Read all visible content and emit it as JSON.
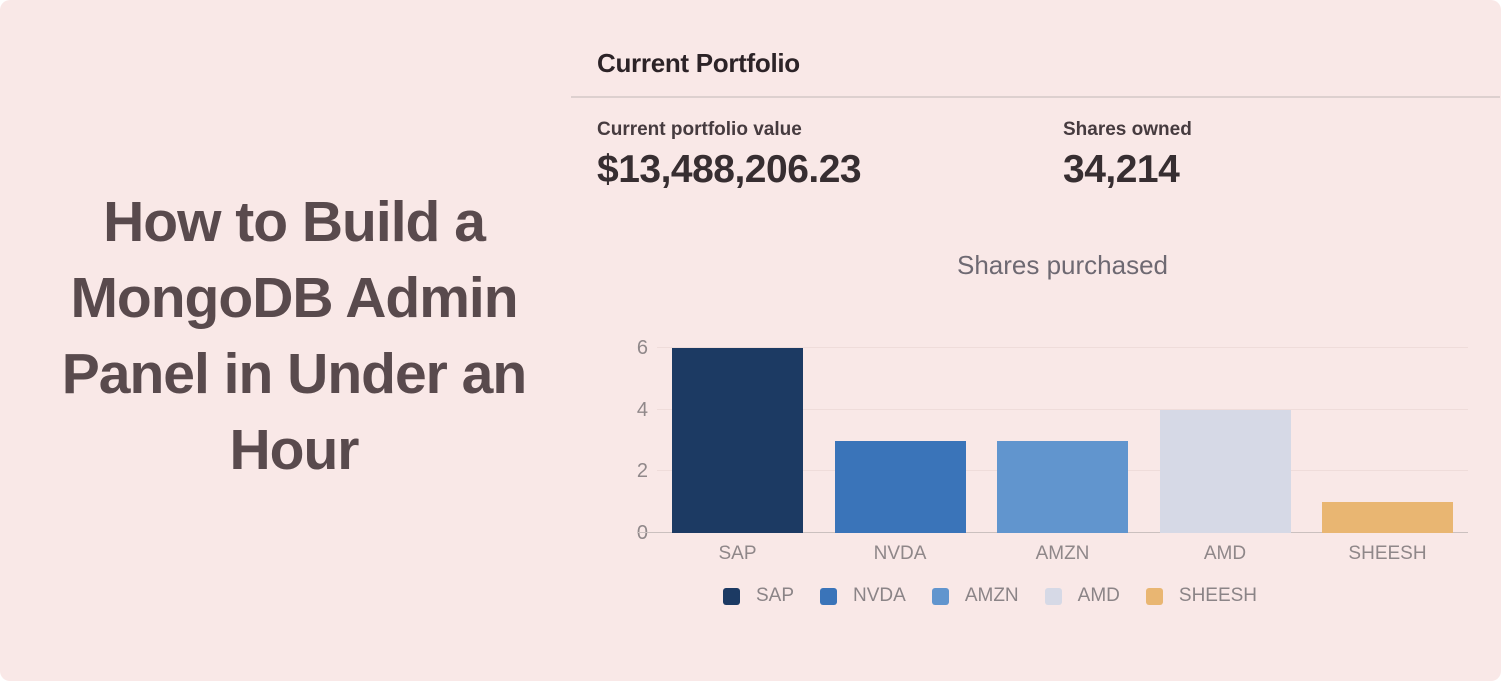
{
  "page": {
    "background_color": "#f9e8e7",
    "headline_color": "#594a4d"
  },
  "banner": {
    "title": "How to Build a MongoDB Admin Panel in Under an Hour"
  },
  "panel": {
    "heading": "Current Portfolio",
    "stats": [
      {
        "label": "Current portfolio value",
        "value": "$13,488,206.23"
      },
      {
        "label": "Shares owned",
        "value": "34,214"
      }
    ]
  },
  "chart_data": {
    "type": "bar",
    "title": "Shares purchased",
    "categories": [
      "SAP",
      "NVDA",
      "AMZN",
      "AMD",
      "SHEESH"
    ],
    "values": [
      6,
      3,
      3,
      4,
      1
    ],
    "colors": [
      "#1c3a63",
      "#3a74b9",
      "#6195ce",
      "#d6d9e6",
      "#e9b672"
    ],
    "xlabel": "",
    "ylabel": "",
    "ylim": [
      0,
      6
    ],
    "yticks": [
      0,
      2,
      4,
      6
    ],
    "grid": true,
    "legend_position": "bottom",
    "legend_entries": [
      "SAP",
      "NVDA",
      "AMZN",
      "AMD",
      "SHEESH"
    ]
  }
}
